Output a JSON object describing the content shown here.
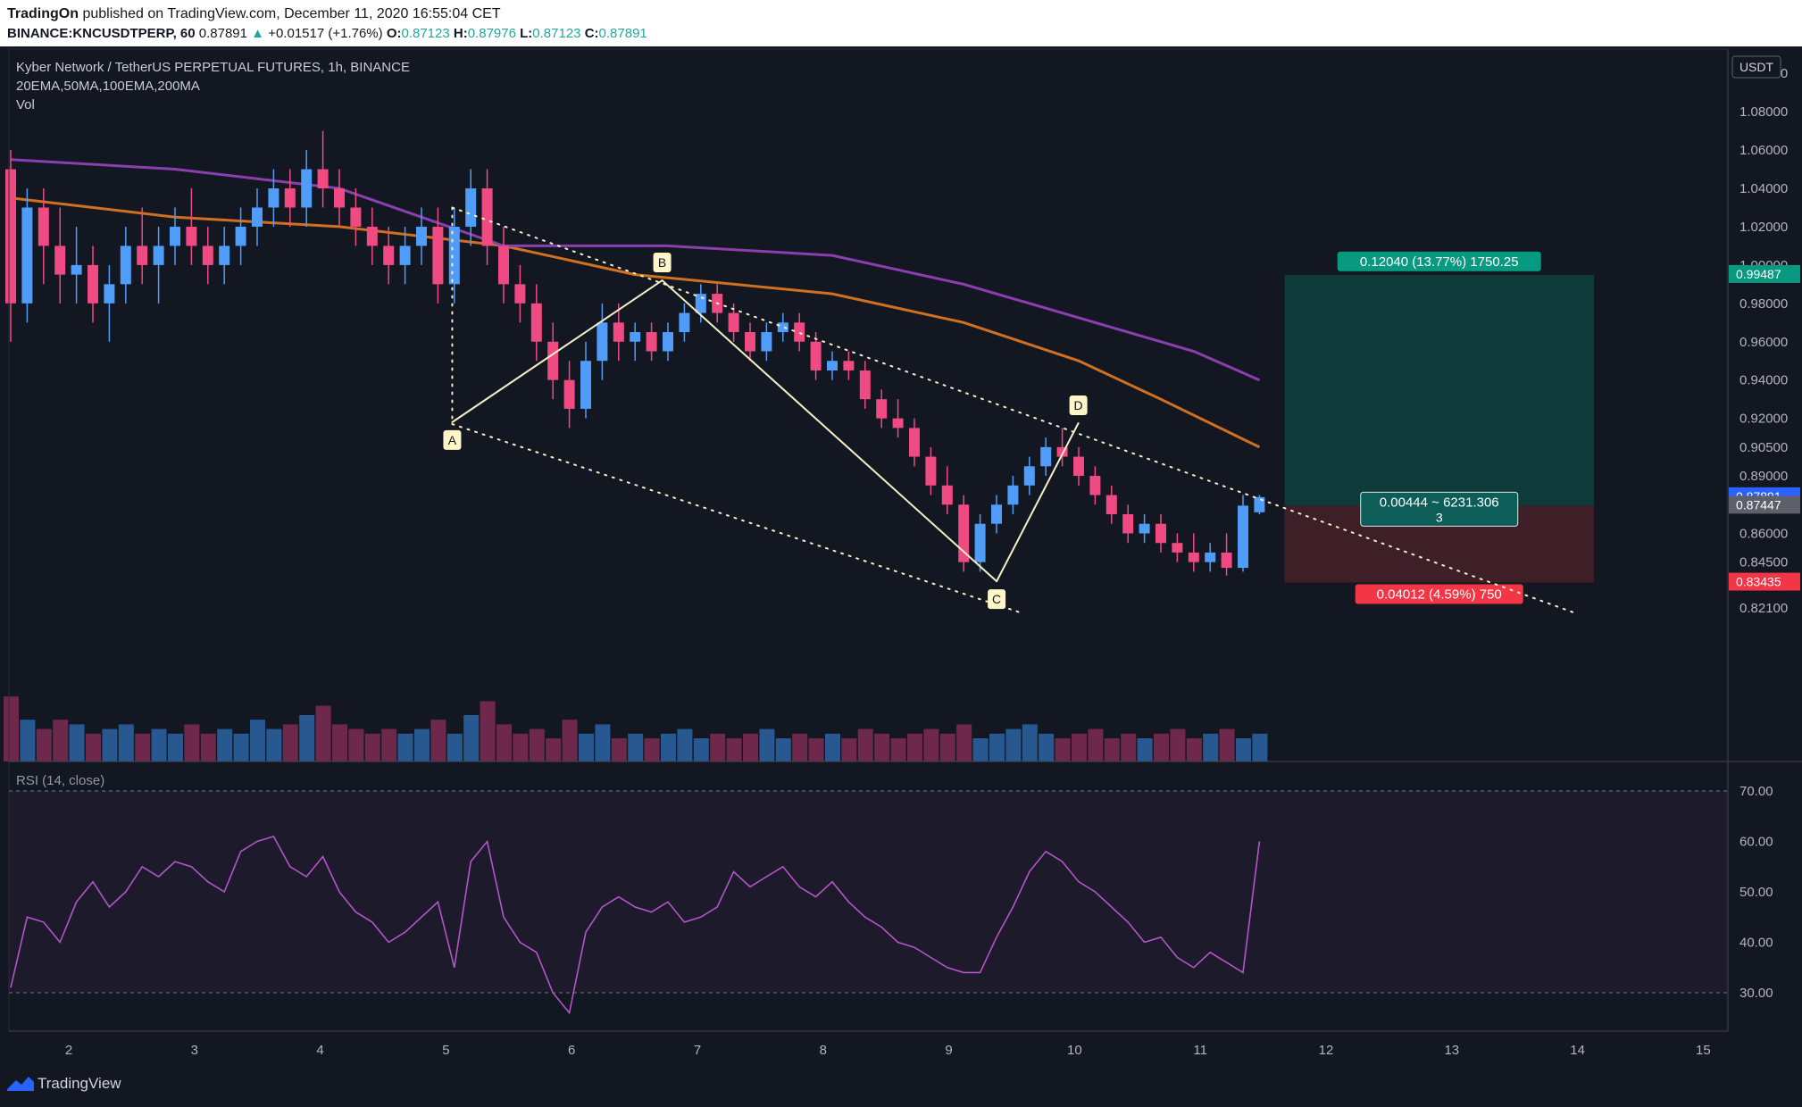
{
  "header": {
    "publisher": "TradingOn",
    "published_text": "published on TradingView.com, December 11, 2020 16:55:04 CET",
    "symbol": "BINANCE:KNCUSDTPERP, 60",
    "last": "0.87891",
    "change_arrow": "▲",
    "change": "+0.01517 (+1.76%)",
    "o_label": "O:",
    "o": "0.87123",
    "h_label": "H:",
    "h": "0.87976",
    "l_label": "L:",
    "l": "0.87123",
    "c_label": "C:",
    "c": "0.87891"
  },
  "legend": {
    "title": "Kyber Network / TetherUS PERPETUAL FUTURES, 1h, BINANCE",
    "indicators": "20EMA,50MA,100EMA,200MA",
    "volume": "Vol",
    "rsi": "RSI (14, close)"
  },
  "footer": {
    "brand": "TradingView"
  },
  "colors": {
    "background": "#131722",
    "up": "#4f9cf9",
    "down": "#ef4a82",
    "ma_orange": "#d1701e",
    "ma_purple": "#8b3fae",
    "target_fill": "#0f3a3a",
    "stop_fill": "#3e1e27",
    "target_label": "#089981",
    "stop_label": "#f23645",
    "rsi_line": "#b455c9"
  },
  "chart_data": {
    "type": "candlestick",
    "symbol": "KNCUSDTPERP",
    "interval": "1h",
    "currency": "USDT",
    "y_ticks": [
      "1.10000",
      "1.08000",
      "1.06000",
      "1.04000",
      "1.02000",
      "1.00000",
      "0.98000",
      "0.96000",
      "0.94000",
      "0.92000",
      "0.90500",
      "0.89000",
      "0.87447",
      "0.86000",
      "0.84500",
      "0.83435",
      "0.82100"
    ],
    "x_ticks": [
      "2",
      "3",
      "4",
      "5",
      "6",
      "7",
      "8",
      "9",
      "10",
      "11",
      "12",
      "13",
      "14",
      "15"
    ],
    "price_markers": [
      {
        "label": "0.99487",
        "value": 0.99487,
        "color": "#089981"
      },
      {
        "label": "0.87891",
        "value": 0.87891,
        "color": "#2962ff"
      },
      {
        "label": "0.87447",
        "value": 0.87447,
        "color": "#5d606b"
      },
      {
        "label": "0.83435",
        "value": 0.83435,
        "color": "#f23645"
      }
    ],
    "candles": [
      [
        1.05,
        1.06,
        0.96,
        0.98
      ],
      [
        0.98,
        1.04,
        0.97,
        1.03
      ],
      [
        1.03,
        1.04,
        0.99,
        1.01
      ],
      [
        1.01,
        1.03,
        0.98,
        0.995
      ],
      [
        0.995,
        1.02,
        0.98,
        1.0
      ],
      [
        1.0,
        1.01,
        0.97,
        0.98
      ],
      [
        0.98,
        1.0,
        0.96,
        0.99
      ],
      [
        0.99,
        1.02,
        0.98,
        1.01
      ],
      [
        1.01,
        1.03,
        0.99,
        1.0
      ],
      [
        1.0,
        1.02,
        0.98,
        1.01
      ],
      [
        1.01,
        1.03,
        1.0,
        1.02
      ],
      [
        1.02,
        1.04,
        1.0,
        1.01
      ],
      [
        1.01,
        1.02,
        0.99,
        1.0
      ],
      [
        1.0,
        1.02,
        0.99,
        1.01
      ],
      [
        1.01,
        1.03,
        1.0,
        1.02
      ],
      [
        1.02,
        1.04,
        1.01,
        1.03
      ],
      [
        1.03,
        1.05,
        1.02,
        1.04
      ],
      [
        1.04,
        1.05,
        1.02,
        1.03
      ],
      [
        1.03,
        1.06,
        1.02,
        1.05
      ],
      [
        1.05,
        1.07,
        1.03,
        1.04
      ],
      [
        1.04,
        1.05,
        1.02,
        1.03
      ],
      [
        1.03,
        1.04,
        1.01,
        1.02
      ],
      [
        1.02,
        1.03,
        1.0,
        1.01
      ],
      [
        1.01,
        1.02,
        0.99,
        1.0
      ],
      [
        1.0,
        1.02,
        0.99,
        1.01
      ],
      [
        1.01,
        1.03,
        1.0,
        1.02
      ],
      [
        1.02,
        1.03,
        0.98,
        0.99
      ],
      [
        0.99,
        1.03,
        0.98,
        1.02
      ],
      [
        1.02,
        1.05,
        1.01,
        1.04
      ],
      [
        1.04,
        1.05,
        1.0,
        1.01
      ],
      [
        1.01,
        1.02,
        0.98,
        0.99
      ],
      [
        0.99,
        1.0,
        0.97,
        0.98
      ],
      [
        0.98,
        0.99,
        0.95,
        0.96
      ],
      [
        0.96,
        0.97,
        0.93,
        0.94
      ],
      [
        0.94,
        0.95,
        0.915,
        0.925
      ],
      [
        0.925,
        0.96,
        0.92,
        0.95
      ],
      [
        0.95,
        0.98,
        0.94,
        0.97
      ],
      [
        0.97,
        0.98,
        0.95,
        0.96
      ],
      [
        0.96,
        0.97,
        0.95,
        0.965
      ],
      [
        0.965,
        0.97,
        0.95,
        0.955
      ],
      [
        0.955,
        0.97,
        0.95,
        0.965
      ],
      [
        0.965,
        0.98,
        0.96,
        0.975
      ],
      [
        0.975,
        0.99,
        0.97,
        0.985
      ],
      [
        0.985,
        0.99,
        0.97,
        0.975
      ],
      [
        0.975,
        0.98,
        0.96,
        0.965
      ],
      [
        0.965,
        0.97,
        0.95,
        0.955
      ],
      [
        0.955,
        0.97,
        0.95,
        0.965
      ],
      [
        0.965,
        0.975,
        0.96,
        0.97
      ],
      [
        0.97,
        0.975,
        0.955,
        0.96
      ],
      [
        0.96,
        0.965,
        0.94,
        0.945
      ],
      [
        0.945,
        0.955,
        0.94,
        0.95
      ],
      [
        0.95,
        0.955,
        0.94,
        0.945
      ],
      [
        0.945,
        0.95,
        0.925,
        0.93
      ],
      [
        0.93,
        0.935,
        0.915,
        0.92
      ],
      [
        0.92,
        0.93,
        0.91,
        0.915
      ],
      [
        0.915,
        0.92,
        0.895,
        0.9
      ],
      [
        0.9,
        0.905,
        0.88,
        0.885
      ],
      [
        0.885,
        0.895,
        0.87,
        0.875
      ],
      [
        0.875,
        0.88,
        0.84,
        0.845
      ],
      [
        0.845,
        0.87,
        0.84,
        0.865
      ],
      [
        0.865,
        0.88,
        0.86,
        0.875
      ],
      [
        0.875,
        0.89,
        0.87,
        0.885
      ],
      [
        0.885,
        0.9,
        0.88,
        0.895
      ],
      [
        0.895,
        0.91,
        0.89,
        0.905
      ],
      [
        0.905,
        0.915,
        0.895,
        0.9
      ],
      [
        0.9,
        0.905,
        0.885,
        0.89
      ],
      [
        0.89,
        0.895,
        0.875,
        0.88
      ],
      [
        0.88,
        0.885,
        0.865,
        0.87
      ],
      [
        0.87,
        0.875,
        0.855,
        0.86
      ],
      [
        0.86,
        0.87,
        0.855,
        0.865
      ],
      [
        0.865,
        0.87,
        0.85,
        0.855
      ],
      [
        0.855,
        0.86,
        0.845,
        0.85
      ],
      [
        0.85,
        0.86,
        0.84,
        0.845
      ],
      [
        0.845,
        0.855,
        0.84,
        0.85
      ],
      [
        0.85,
        0.86,
        0.838,
        0.842
      ],
      [
        0.842,
        0.88,
        0.84,
        0.87447
      ],
      [
        0.871,
        0.88,
        0.87,
        0.87891
      ]
    ],
    "moving_averages": [
      {
        "name": "orange",
        "color": "#d1701e",
        "points": [
          [
            0,
            1.035
          ],
          [
            10,
            1.025
          ],
          [
            20,
            1.02
          ],
          [
            30,
            1.01
          ],
          [
            38,
            0.995
          ],
          [
            50,
            0.985
          ],
          [
            58,
            0.97
          ],
          [
            65,
            0.95
          ],
          [
            70,
            0.93
          ],
          [
            76,
            0.905
          ]
        ]
      },
      {
        "name": "purple",
        "color": "#8b3fae",
        "points": [
          [
            0,
            1.055
          ],
          [
            10,
            1.05
          ],
          [
            20,
            1.04
          ],
          [
            30,
            1.01
          ],
          [
            40,
            1.01
          ],
          [
            50,
            1.005
          ],
          [
            58,
            0.99
          ],
          [
            66,
            0.97
          ],
          [
            72,
            0.955
          ],
          [
            76,
            0.94
          ]
        ]
      }
    ],
    "volume": [
      14,
      9,
      7,
      9,
      8,
      6,
      7,
      8,
      6,
      7,
      6,
      8,
      6,
      7,
      6,
      9,
      7,
      8,
      10,
      12,
      8,
      7,
      6,
      7,
      6,
      7,
      9,
      6,
      10,
      13,
      8,
      6,
      7,
      5,
      9,
      6,
      8,
      5,
      6,
      5,
      6,
      7,
      5,
      6,
      5,
      6,
      7,
      5,
      6,
      5,
      6,
      5,
      7,
      6,
      5,
      6,
      7,
      6,
      8,
      5,
      6,
      7,
      8,
      6,
      5,
      6,
      7,
      5,
      6,
      5,
      6,
      7,
      5,
      6,
      7,
      5,
      6
    ],
    "rsi": [
      31,
      45,
      44,
      40,
      48,
      52,
      47,
      50,
      55,
      53,
      56,
      55,
      52,
      50,
      58,
      60,
      61,
      55,
      53,
      57,
      50,
      46,
      44,
      40,
      42,
      45,
      48,
      35,
      56,
      60,
      45,
      40,
      38,
      30,
      26,
      42,
      47,
      49,
      47,
      46,
      48,
      44,
      45,
      47,
      54,
      51,
      53,
      55,
      51,
      49,
      52,
      48,
      45,
      43,
      40,
      39,
      37,
      35,
      34,
      34,
      41,
      47,
      54,
      58,
      56,
      52,
      50,
      47,
      44,
      40,
      41,
      37,
      35,
      38,
      36,
      34,
      60
    ],
    "rsi_levels": [
      70,
      30
    ],
    "rsi_ticks": [
      "70.00",
      "60.00",
      "50.00",
      "40.00",
      "30.00"
    ],
    "pattern": {
      "points": [
        {
          "label": "A",
          "x": 5.05,
          "y": 0.918
        },
        {
          "label": "B",
          "x": 6.72,
          "y": 0.992
        },
        {
          "label": "C",
          "x": 9.38,
          "y": 0.835
        },
        {
          "label": "D",
          "x": 10.03,
          "y": 0.9175
        }
      ],
      "channel_upper": [
        [
          5.05,
          1.03
        ],
        [
          14.0,
          0.818
        ]
      ],
      "channel_lower": [
        [
          5.05,
          0.917
        ],
        [
          9.6,
          0.818
        ]
      ],
      "channel_vertical": [
        [
          5.05,
          1.03
        ],
        [
          5.05,
          0.917
        ]
      ]
    },
    "position": {
      "target_label": "0.12040 (13.77%) 1750.25",
      "entry_label": "0.00444 ~ 6231.306",
      "entry_qty": "3",
      "stop_label": "0.04012 (4.59%) 750",
      "target": 0.99487,
      "entry": 0.87447,
      "stop": 0.83435,
      "start_day": 11.67,
      "end_day": 14.13
    }
  }
}
